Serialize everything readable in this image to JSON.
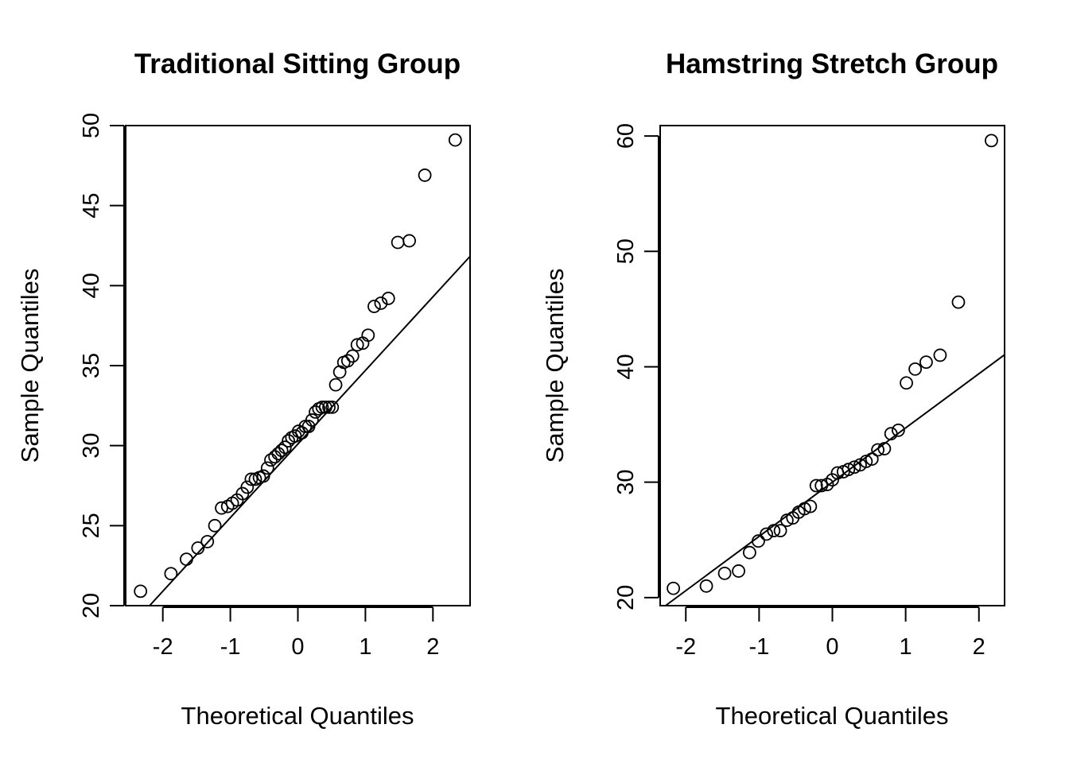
{
  "chart_data": [
    {
      "type": "scatter",
      "title": "Traditional Sitting Group",
      "xlabel": "Theoretical Quantiles",
      "ylabel": "Sample Quantiles",
      "xlim": [
        -2.55,
        2.55
      ],
      "ylim": [
        20,
        50
      ],
      "xticks": [
        -2,
        -1,
        0,
        1,
        2
      ],
      "xtick_labels": [
        "-2",
        "-1",
        "0",
        "1",
        "2"
      ],
      "yticks": [
        20,
        25,
        30,
        35,
        40,
        45,
        50
      ],
      "ytick_labels": [
        "20",
        "25",
        "30",
        "35",
        "40",
        "45",
        "50"
      ],
      "grid": false,
      "reference_line": {
        "slope": 4.6,
        "intercept": 30.1
      },
      "points": [
        [
          -2.33,
          20.9
        ],
        [
          -1.88,
          22.0
        ],
        [
          -1.65,
          22.9
        ],
        [
          -1.48,
          23.6
        ],
        [
          -1.34,
          24.0
        ],
        [
          -1.23,
          25.0
        ],
        [
          -1.13,
          26.1
        ],
        [
          -1.04,
          26.2
        ],
        [
          -0.97,
          26.4
        ],
        [
          -0.9,
          26.6
        ],
        [
          -0.82,
          27.0
        ],
        [
          -0.75,
          27.4
        ],
        [
          -0.69,
          27.9
        ],
        [
          -0.63,
          27.9
        ],
        [
          -0.57,
          28.0
        ],
        [
          -0.51,
          28.1
        ],
        [
          -0.45,
          28.6
        ],
        [
          -0.4,
          29.1
        ],
        [
          -0.34,
          29.3
        ],
        [
          -0.29,
          29.5
        ],
        [
          -0.24,
          29.7
        ],
        [
          -0.19,
          29.9
        ],
        [
          -0.14,
          30.3
        ],
        [
          -0.09,
          30.5
        ],
        [
          -0.04,
          30.6
        ],
        [
          0.01,
          30.9
        ],
        [
          0.06,
          30.8
        ],
        [
          0.11,
          31.2
        ],
        [
          0.16,
          31.2
        ],
        [
          0.21,
          31.6
        ],
        [
          0.26,
          32.1
        ],
        [
          0.31,
          32.3
        ],
        [
          0.36,
          32.4
        ],
        [
          0.41,
          32.4
        ],
        [
          0.46,
          32.4
        ],
        [
          0.51,
          32.4
        ],
        [
          0.56,
          33.8
        ],
        [
          0.62,
          34.6
        ],
        [
          0.68,
          35.2
        ],
        [
          0.74,
          35.3
        ],
        [
          0.81,
          35.6
        ],
        [
          0.88,
          36.3
        ],
        [
          0.96,
          36.4
        ],
        [
          1.04,
          36.9
        ],
        [
          1.13,
          38.7
        ],
        [
          1.23,
          38.9
        ],
        [
          1.34,
          39.2
        ],
        [
          1.48,
          42.7
        ],
        [
          1.65,
          42.8
        ],
        [
          1.88,
          46.9
        ],
        [
          2.33,
          49.1
        ]
      ]
    },
    {
      "type": "scatter",
      "title": "Hamstring Stretch Group",
      "xlabel": "Theoretical Quantiles",
      "ylabel": "Sample Quantiles",
      "xlim": [
        -2.35,
        2.35
      ],
      "ylim": [
        19.3,
        60.9
      ],
      "xticks": [
        -2,
        -1,
        0,
        1,
        2
      ],
      "xtick_labels": [
        "-2",
        "-1",
        "0",
        "1",
        "2"
      ],
      "yticks": [
        20,
        30,
        40,
        50,
        60
      ],
      "ytick_labels": [
        "20",
        "30",
        "40",
        "50",
        "60"
      ],
      "grid": false,
      "reference_line": {
        "slope": 4.7,
        "intercept": 30.0
      },
      "points": [
        [
          -2.17,
          20.8
        ],
        [
          -1.72,
          21.0
        ],
        [
          -1.47,
          22.1
        ],
        [
          -1.28,
          22.3
        ],
        [
          -1.13,
          23.9
        ],
        [
          -1.01,
          24.9
        ],
        [
          -0.9,
          25.5
        ],
        [
          -0.8,
          25.8
        ],
        [
          -0.71,
          25.8
        ],
        [
          -0.62,
          26.7
        ],
        [
          -0.54,
          26.9
        ],
        [
          -0.46,
          27.4
        ],
        [
          -0.38,
          27.7
        ],
        [
          -0.3,
          27.9
        ],
        [
          -0.22,
          29.7
        ],
        [
          -0.15,
          29.7
        ],
        [
          -0.07,
          29.8
        ],
        [
          0.0,
          30.2
        ],
        [
          0.07,
          30.8
        ],
        [
          0.15,
          30.9
        ],
        [
          0.22,
          31.1
        ],
        [
          0.3,
          31.3
        ],
        [
          0.38,
          31.5
        ],
        [
          0.46,
          31.8
        ],
        [
          0.54,
          32.0
        ],
        [
          0.62,
          32.8
        ],
        [
          0.71,
          32.9
        ],
        [
          0.8,
          34.2
        ],
        [
          0.9,
          34.5
        ],
        [
          1.01,
          38.6
        ],
        [
          1.13,
          39.8
        ],
        [
          1.28,
          40.4
        ],
        [
          1.47,
          41.0
        ],
        [
          1.72,
          45.6
        ],
        [
          2.17,
          59.6
        ]
      ]
    }
  ]
}
